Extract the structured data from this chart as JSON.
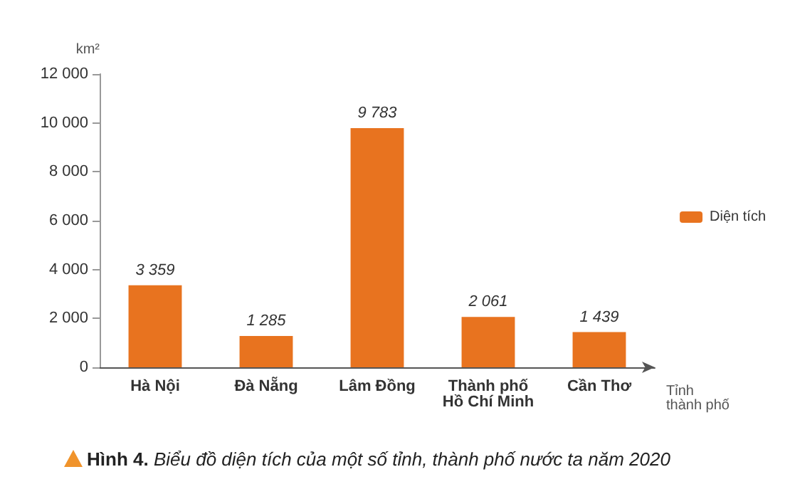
{
  "chart_data": {
    "type": "bar",
    "title": "Hình 4. Biểu đồ diện tích của một số tỉnh, thành phố nước ta năm 2020",
    "ylabel": "km²",
    "xlabel": "Tỉnh\nthành phố",
    "categories": [
      "Hà Nội",
      "Đà Nẵng",
      "Lâm Đồng",
      "Thành phố\nHồ Chí Minh",
      "Cần Thơ"
    ],
    "series": [
      {
        "name": "Diện tích",
        "color": "#e8731f",
        "values": [
          3359,
          1285,
          9783,
          2061,
          1439
        ],
        "value_labels": [
          "3 359",
          "1 285",
          "9 783",
          "2 061",
          "1 439"
        ]
      }
    ],
    "ylim": [
      0,
      12000
    ],
    "yticks": [
      {
        "value": 0,
        "label": "0"
      },
      {
        "value": 2000,
        "label": "2 000"
      },
      {
        "value": 4000,
        "label": "4 000"
      },
      {
        "value": 6000,
        "label": "6 000"
      },
      {
        "value": 8000,
        "label": "8 000"
      },
      {
        "value": 10000,
        "label": "10 000"
      },
      {
        "value": 12000,
        "label": "12 000"
      }
    ],
    "grid": false,
    "legend": "right"
  }
}
